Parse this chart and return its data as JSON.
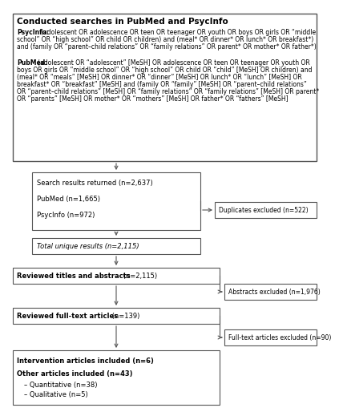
{
  "title": "Conducted searches in PubMed and PsycInfo",
  "psycinfo_label": "PsycInfo:",
  "psycinfo_text": " (adolescent OR adolescence OR teen OR teenager OR youth OR boys OR girls OR “middle school” OR “high school” OR child OR children) and (meal* OR dinner* OR lunch* OR breakfast*) and (family OR “parent–child relations” OR “family relations” OR parent* OR mother* OR father*)",
  "pubmed_label": "PubMed:",
  "pubmed_text": " (adolescent OR “adolescent” [MeSH] OR adolescence OR teen OR teenager OR youth OR boys OR girls OR “middle school” OR “high school” OR child OR “child” [MeSH] OR children) and (meal* OR “meals” [MeSH] OR dinner* OR “dinner” [MeSH] OR lunch* OR “lunch” [MeSH] OR breakfast* OR “breakfast” [MeSH] and (family OR “family” [MeSH] OR “parent–child relations” OR “parent–child relations” [MeSH] OR “family relations” OR “family relations” [MeSH] OR parent* OR “parents” [MeSH] OR mother* OR “mothers” [MeSH] OR father* OR “fathers” [MeSH]",
  "search_line1": "Search results returned (n=2,637)",
  "search_line2": "PubMed (n=1,665)",
  "search_line3": "PsycInfo (n=972)",
  "unique_text": "Total unique results (n=2,115)",
  "reviewed_titles_bold": "Reviewed titles and abstracts",
  "reviewed_titles_normal": " (n=2,115)",
  "reviewed_full_bold": "Reviewed full-text articles",
  "reviewed_full_normal": " (n=139)",
  "intervention_bold": "Intervention articles included (n=6)",
  "other_bold": "Other articles included (n=43)",
  "quant_text": "– Quantitative (n=38)",
  "qual_text": "– Qualitative (n=5)",
  "side1_text": "Duplicates excluded (n=522)",
  "side2_text": "Abstracts excluded (n=1,976)",
  "side3_text": "Full-text articles excluded (n=90)",
  "bg_color": "#ffffff",
  "box_edge_color": "#555555",
  "arrow_color": "#555555",
  "text_color": "#000000"
}
